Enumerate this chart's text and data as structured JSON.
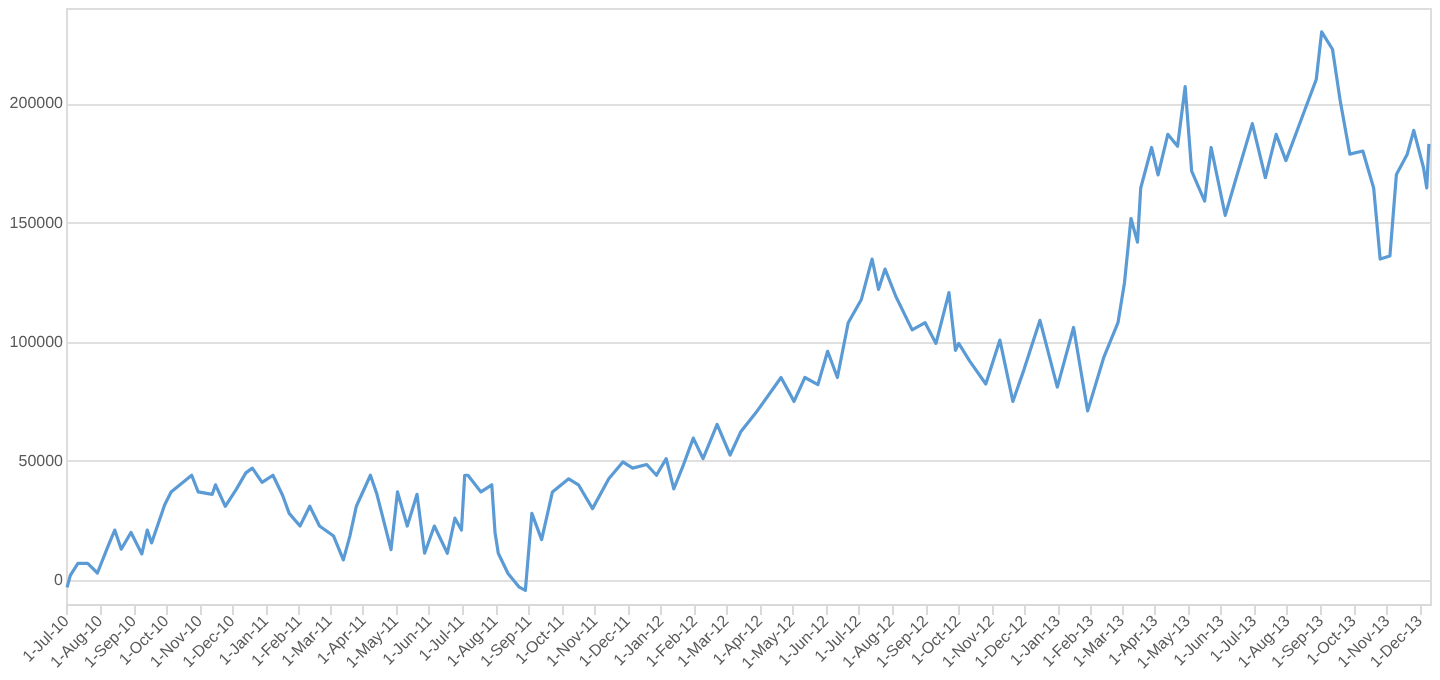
{
  "chart_data": {
    "type": "line",
    "grid": "y",
    "legend": false,
    "line_style": "solid",
    "marker": "none",
    "xlim": [
      "2010-07-01",
      "2013-12-11"
    ],
    "xticks": [
      {
        "value": "2010-07-01",
        "label": "1-Jul-10"
      },
      {
        "value": "2010-08-01",
        "label": "1-Aug-10"
      },
      {
        "value": "2010-09-01",
        "label": "1-Sep-10"
      },
      {
        "value": "2010-10-01",
        "label": "1-Oct-10"
      },
      {
        "value": "2010-11-01",
        "label": "1-Nov-10"
      },
      {
        "value": "2010-12-01",
        "label": "1-Dec-10"
      },
      {
        "value": "2011-01-01",
        "label": "1-Jan-11"
      },
      {
        "value": "2011-02-01",
        "label": "1-Feb-11"
      },
      {
        "value": "2011-03-01",
        "label": "1-Mar-11"
      },
      {
        "value": "2011-04-01",
        "label": "1-Apr-11"
      },
      {
        "value": "2011-05-01",
        "label": "1-May-11"
      },
      {
        "value": "2011-06-01",
        "label": "1-Jun-11"
      },
      {
        "value": "2011-07-01",
        "label": "1-Jul-11"
      },
      {
        "value": "2011-08-01",
        "label": "1-Aug-11"
      },
      {
        "value": "2011-09-01",
        "label": "1-Sep-11"
      },
      {
        "value": "2011-10-01",
        "label": "1-Oct-11"
      },
      {
        "value": "2011-11-01",
        "label": "1-Nov-11"
      },
      {
        "value": "2011-12-01",
        "label": "1-Dec-11"
      },
      {
        "value": "2012-01-01",
        "label": "1-Jan-12"
      },
      {
        "value": "2012-02-01",
        "label": "1-Feb-12"
      },
      {
        "value": "2012-03-01",
        "label": "1-Mar-12"
      },
      {
        "value": "2012-04-01",
        "label": "1-Apr-12"
      },
      {
        "value": "2012-05-01",
        "label": "1-May-12"
      },
      {
        "value": "2012-06-01",
        "label": "1-Jun-12"
      },
      {
        "value": "2012-07-01",
        "label": "1-Jul-12"
      },
      {
        "value": "2012-08-01",
        "label": "1-Aug-12"
      },
      {
        "value": "2012-09-01",
        "label": "1-Sep-12"
      },
      {
        "value": "2012-10-01",
        "label": "1-Oct-12"
      },
      {
        "value": "2012-11-01",
        "label": "1-Nov-12"
      },
      {
        "value": "2012-12-01",
        "label": "1-Dec-12"
      },
      {
        "value": "2013-01-01",
        "label": "1-Jan-13"
      },
      {
        "value": "2013-02-01",
        "label": "1-Feb-13"
      },
      {
        "value": "2013-03-01",
        "label": "1-Mar-13"
      },
      {
        "value": "2013-04-01",
        "label": "1-Apr-13"
      },
      {
        "value": "2013-05-01",
        "label": "1-May-13"
      },
      {
        "value": "2013-06-01",
        "label": "1-Jun-13"
      },
      {
        "value": "2013-07-01",
        "label": "1-Jul-13"
      },
      {
        "value": "2013-08-01",
        "label": "1-Aug-13"
      },
      {
        "value": "2013-09-01",
        "label": "1-Sep-13"
      },
      {
        "value": "2013-10-01",
        "label": "1-Oct-13"
      },
      {
        "value": "2013-11-01",
        "label": "1-Nov-13"
      },
      {
        "value": "2013-12-01",
        "label": "1-Dec-13"
      }
    ],
    "ylim": [
      -10000,
      240000
    ],
    "yticks": [
      0,
      50000,
      100000,
      150000,
      200000
    ],
    "series": [
      {
        "color": "#5b9bd5",
        "x": [
          "2010-07-02",
          "2010-07-05",
          "2010-07-12",
          "2010-07-21",
          "2010-07-30",
          "2010-08-09",
          "2010-08-15",
          "2010-08-21",
          "2010-08-30",
          "2010-09-09",
          "2010-09-14",
          "2010-09-18",
          "2010-09-30",
          "2010-10-06",
          "2010-10-25",
          "2010-10-31",
          "2010-11-13",
          "2010-11-16",
          "2010-11-25",
          "2010-12-05",
          "2010-12-14",
          "2010-12-20",
          "2010-12-29",
          "2011-01-08",
          "2011-01-17",
          "2011-01-23",
          "2011-02-02",
          "2011-02-11",
          "2011-02-20",
          "2011-03-05",
          "2011-03-14",
          "2011-03-20",
          "2011-03-26",
          "2011-04-08",
          "2011-04-14",
          "2011-04-27",
          "2011-05-03",
          "2011-05-12",
          "2011-05-21",
          "2011-05-28",
          "2011-06-06",
          "2011-06-18",
          "2011-06-25",
          "2011-07-01",
          "2011-07-04",
          "2011-07-07",
          "2011-07-19",
          "2011-07-29",
          "2011-08-01",
          "2011-08-04",
          "2011-08-13",
          "2011-08-23",
          "2011-08-29",
          "2011-09-04",
          "2011-09-13",
          "2011-09-23",
          "2011-10-08",
          "2011-10-17",
          "2011-10-30",
          "2011-11-14",
          "2011-11-27",
          "2011-12-06",
          "2011-12-19",
          "2011-12-28",
          "2012-01-06",
          "2012-01-13",
          "2012-01-22",
          "2012-01-31",
          "2012-02-09",
          "2012-02-22",
          "2012-03-05",
          "2012-03-15",
          "2012-03-30",
          "2012-04-21",
          "2012-05-03",
          "2012-05-13",
          "2012-05-25",
          "2012-06-03",
          "2012-06-12",
          "2012-06-22",
          "2012-07-04",
          "2012-07-14",
          "2012-07-20",
          "2012-07-26",
          "2012-08-05",
          "2012-08-20",
          "2012-09-01",
          "2012-09-11",
          "2012-09-23",
          "2012-09-29",
          "2012-10-02",
          "2012-10-12",
          "2012-10-27",
          "2012-11-09",
          "2012-11-21",
          "2012-12-01",
          "2012-12-16",
          "2013-01-01",
          "2013-01-16",
          "2013-01-29",
          "2013-02-13",
          "2013-02-26",
          "2013-03-04",
          "2013-03-10",
          "2013-03-16",
          "2013-03-19",
          "2013-03-29",
          "2013-04-04",
          "2013-04-13",
          "2013-04-22",
          "2013-04-29",
          "2013-05-05",
          "2013-05-17",
          "2013-05-23",
          "2013-06-05",
          "2013-06-14",
          "2013-06-30",
          "2013-07-12",
          "2013-07-22",
          "2013-07-31",
          "2013-08-15",
          "2013-08-28",
          "2013-09-02",
          "2013-09-12",
          "2013-09-19",
          "2013-09-28",
          "2013-10-10",
          "2013-10-20",
          "2013-10-26",
          "2013-11-04",
          "2013-11-10",
          "2013-11-20",
          "2013-11-26",
          "2013-12-05",
          "2013-12-08",
          "2013-12-10"
        ],
        "values": [
          -3000,
          2000,
          7000,
          7000,
          3000,
          14500,
          21000,
          13000,
          20000,
          11000,
          21000,
          15600,
          31500,
          37000,
          44000,
          37000,
          36000,
          40000,
          31000,
          38000,
          45000,
          47000,
          41000,
          44000,
          35500,
          28000,
          22700,
          31000,
          22700,
          18500,
          8500,
          18500,
          31000,
          44000,
          36000,
          12800,
          37000,
          22700,
          36000,
          11300,
          22700,
          11300,
          26000,
          21000,
          44000,
          44000,
          37000,
          40000,
          20000,
          11300,
          2800,
          -2800,
          -4300,
          28000,
          17000,
          37000,
          42500,
          40000,
          30000,
          42500,
          49600,
          47000,
          48500,
          44000,
          51000,
          38300,
          48500,
          59600,
          51000,
          65300,
          52500,
          62400,
          71000,
          85000,
          75000,
          85000,
          82000,
          96000,
          85000,
          108000,
          117600,
          134700,
          122000,
          130500,
          119000,
          105000,
          108000,
          99300,
          120600,
          96400,
          99300,
          92000,
          82300,
          100700,
          75000,
          88000,
          109000,
          81000,
          106000,
          71000,
          93600,
          108000,
          124800,
          151700,
          141800,
          164500,
          181500,
          170000,
          187000,
          182000,
          207000,
          171600,
          159000,
          181500,
          153000,
          167000,
          191500,
          168800,
          187000,
          176000,
          194300,
          210000,
          230000,
          222700,
          201400,
          178700,
          180000,
          164500,
          134700,
          136000,
          170200,
          178700,
          188700,
          173000,
          164500,
          183000
        ]
      }
    ]
  }
}
